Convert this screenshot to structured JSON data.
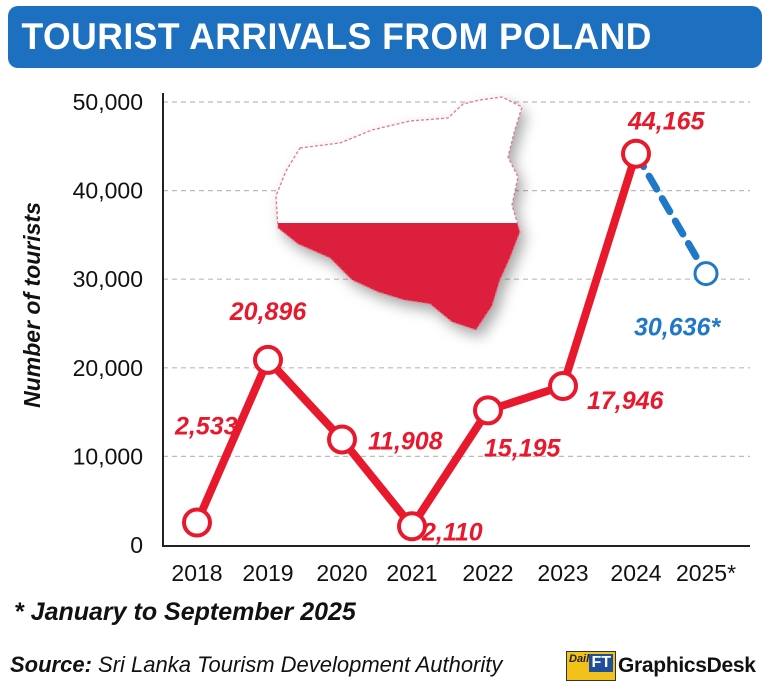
{
  "title": "TOURIST ARRIVALS FROM POLAND",
  "footnote": "* January to September 2025",
  "source_label": "Source:",
  "source_text": "Sri Lanka Tourism Development Authority",
  "logo": {
    "mark_small": "Daily",
    "mark_big": "FT",
    "text": "GraphicsDesk"
  },
  "colors": {
    "title_bg": "#1d6fc0",
    "actual": "#e8192c",
    "provisional": "#1f78c8",
    "grid": "#bbbbbb"
  },
  "chart_data": {
    "type": "line",
    "ylabel": "Number of tourists",
    "xlabel": "",
    "ylim": [
      0,
      50000
    ],
    "yticks": [
      0,
      10000,
      20000,
      30000,
      40000,
      50000
    ],
    "ytick_labels": [
      "0",
      "10,000",
      "20,000",
      "30,000",
      "40,000",
      "50,000"
    ],
    "categories": [
      "2018",
      "2019",
      "2020",
      "2021",
      "2022",
      "2023",
      "2024",
      "2025*"
    ],
    "series": [
      {
        "style": "solid",
        "color": "#e8192c",
        "x": [
          "2018",
          "2019",
          "2020",
          "2021",
          "2022",
          "2023",
          "2024"
        ],
        "values": [
          2533,
          20896,
          11908,
          2110,
          15195,
          17946,
          44165
        ],
        "labels": [
          "2,533",
          "20,896",
          "11,908",
          "2,110",
          "15,195",
          "17,946",
          "44,165"
        ]
      },
      {
        "style": "dashed",
        "color": "#1f78c8",
        "x": [
          "2024",
          "2025*"
        ],
        "values": [
          44165,
          30636
        ],
        "labels": [
          "",
          "30,636*"
        ]
      }
    ],
    "grid": "horizontal dashed",
    "annotation_image": "poland-flag-map"
  }
}
